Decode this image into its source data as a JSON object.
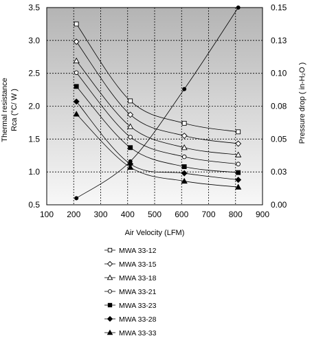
{
  "chart_data": {
    "type": "line",
    "x": [
      210,
      410,
      610,
      810
    ],
    "xlabel": "Air Velocity (LFM)",
    "xlim": [
      100,
      900
    ],
    "xticks": [
      "100",
      "200",
      "300",
      "400",
      "500",
      "600",
      "700",
      "800",
      "900"
    ],
    "ylabel_line1": "Thermal resistance",
    "ylabel_line2": "Rca (°C/ W )",
    "ylim": [
      0.5,
      3.5
    ],
    "yticks": [
      "0.5",
      "1.0",
      "1.5",
      "2.0",
      "2.5",
      "3.0",
      "3.5"
    ],
    "y2label": "Pressure drop ( in-H₂O )",
    "y2lim": [
      0.0,
      0.15
    ],
    "y2ticks": [
      "0.00",
      "0.03",
      "0.05",
      "0.08",
      "0.10",
      "0.13",
      "0.15"
    ],
    "grid": true,
    "plot_background": "gradient light-to-dark gray",
    "legend_position": "below",
    "series": [
      {
        "name": "MWA 33-12",
        "marker": "square-open",
        "values": [
          3.25,
          2.08,
          1.74,
          1.61
        ]
      },
      {
        "name": "MWA 33-15",
        "marker": "diamond-open",
        "values": [
          2.98,
          1.87,
          1.55,
          1.43
        ]
      },
      {
        "name": "MWA 33-18",
        "marker": "triangle-open",
        "values": [
          2.69,
          1.69,
          1.37,
          1.26
        ]
      },
      {
        "name": "MWA 33-21",
        "marker": "circle-open",
        "values": [
          2.51,
          1.53,
          1.23,
          1.12
        ]
      },
      {
        "name": "MWA 33-23",
        "marker": "square-filled",
        "values": [
          2.3,
          1.37,
          1.08,
          0.99
        ]
      },
      {
        "name": "MWA 33-28",
        "marker": "diamond-filled",
        "values": [
          2.07,
          1.12,
          0.98,
          0.88
        ]
      },
      {
        "name": "MWA 33-33",
        "marker": "triangle-filled",
        "values": [
          1.88,
          1.07,
          0.86,
          0.77
        ]
      }
    ],
    "pressure_series": {
      "marker": "circle-filled",
      "axis": "right",
      "values": [
        0.005,
        0.033,
        0.088,
        0.15
      ]
    }
  }
}
